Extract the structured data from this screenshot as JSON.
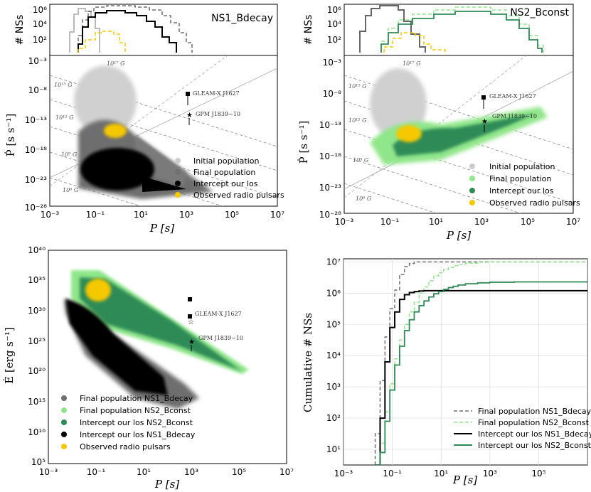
{
  "chart_data": [
    {
      "panel": "top-left",
      "type": "scatter",
      "histogram_title": "NS1_Bdecay",
      "histogram_ylabel": "# NSs",
      "histogram_yticks": [
        "10⁶",
        "10⁴",
        "10²"
      ],
      "xlabel": "P [s]",
      "ylabel": "Ṗ [s s⁻¹]",
      "xlim_log10": [
        -3,
        7
      ],
      "ylim_log10": [
        -28,
        -3
      ],
      "xticks": [
        "10⁻³",
        "10⁻¹",
        "10¹",
        "10³",
        "10⁵",
        "10⁷"
      ],
      "yticks": [
        "10⁻³",
        "10⁻⁸",
        "10⁻¹³",
        "10⁻¹⁸",
        "10⁻²³",
        "10⁻²⁸"
      ],
      "bfield_lines": [
        "10¹⁷ G",
        "10¹⁵ G",
        "10¹² G",
        "10⁹ G",
        "10⁶ G"
      ],
      "sources": [
        {
          "name": "GLEAM-X J1627",
          "logP": 3.03,
          "logPdot": -7.0
        },
        {
          "name": "GPM J1839−10",
          "logP": 3.12,
          "logPdot": -12.5
        }
      ],
      "legend": [
        "Initial population",
        "Final population",
        "Intercept our los",
        "Observed radio pulsars"
      ]
    },
    {
      "panel": "top-right",
      "type": "scatter",
      "histogram_title": "NS2_Bconst",
      "histogram_ylabel": "# NSs",
      "histogram_yticks": [
        "10⁶",
        "10⁴",
        "10²"
      ],
      "xlabel": "P [s]",
      "ylabel": "Ṗ [s s⁻¹]",
      "xlim_log10": [
        -3,
        7
      ],
      "ylim_log10": [
        -28,
        -3
      ],
      "xticks": [
        "10⁻³",
        "10⁻¹",
        "10¹",
        "10³",
        "10⁵",
        "10⁷"
      ],
      "yticks": [
        "10⁻³",
        "10⁻⁸",
        "10⁻¹³",
        "10⁻¹⁸",
        "10⁻²³",
        "10⁻²⁸"
      ],
      "bfield_lines": [
        "10¹⁷ G",
        "10¹⁵ G",
        "10¹² G",
        "10⁹ G",
        "10⁶ G"
      ],
      "sources": [
        {
          "name": "GLEAM-X J1627",
          "logP": 3.03,
          "logPdot": -7.0
        },
        {
          "name": "GPM J1839−10",
          "logP": 3.12,
          "logPdot": -12.5
        }
      ],
      "legend": [
        "Initial population",
        "Final population",
        "Intercept our los",
        "Observed radio pulsars"
      ]
    },
    {
      "panel": "bottom-left",
      "type": "scatter",
      "xlabel": "P [s]",
      "ylabel": "Ė [erg s⁻¹]",
      "xlim_log10": [
        -3,
        7
      ],
      "ylim_log10": [
        5,
        40
      ],
      "xticks": [
        "10⁻³",
        "10⁻¹",
        "10¹",
        "10³",
        "10⁵",
        "10⁷"
      ],
      "yticks": [
        "10⁴⁰",
        "10³⁵",
        "10³⁰",
        "10²⁵",
        "10²⁰",
        "10¹⁵",
        "10¹⁰",
        "10⁵"
      ],
      "sources": [
        {
          "name": "GLEAM-X J1627",
          "logP": 3.03,
          "logEdot": 28.5
        },
        {
          "name": "GPM J1839−10",
          "logP": 3.12,
          "logEdot": 25.0
        }
      ],
      "legend": [
        "Final population NS1_Bdecay",
        "Final population NS2_Bconst",
        "Intercept our los NS2_Bconst",
        "Intercept our los NS1_Bdecay",
        "Observed radio pulsars"
      ]
    },
    {
      "panel": "bottom-right",
      "type": "line",
      "xlabel": "P [s]",
      "ylabel": "Cumulative # NSs",
      "xlim_log10": [
        -3,
        7
      ],
      "ylim_log10": [
        0.5,
        7.1
      ],
      "xticks": [
        "10⁻³",
        "10⁻¹",
        "10¹",
        "10³",
        "10⁵"
      ],
      "yticks": [
        "10⁷",
        "10⁶",
        "10⁵",
        "10⁴",
        "10³",
        "10²",
        "10¹"
      ],
      "x_log10": [
        -1.7,
        -1.5,
        -1.3,
        -1.1,
        -0.9,
        -0.7,
        -0.5,
        -0.3,
        -0.1,
        0.1,
        0.3,
        0.5,
        0.7,
        0.9,
        1.1,
        1.3,
        1.5,
        1.7,
        2.0,
        2.5,
        3.0,
        4.0,
        5.0,
        7.0
      ],
      "series": [
        {
          "name": "Final population NS1_Bdecay",
          "values_log10": [
            1.5,
            3.2,
            4.6,
            5.5,
            6.1,
            6.6,
            6.85,
            6.95,
            7.0,
            7.0,
            7.0,
            7.0,
            7.0,
            7.0,
            7.0,
            7.0,
            7.0,
            7.0,
            7.0,
            7.0,
            7.0,
            7.0,
            7.0,
            7.0
          ]
        },
        {
          "name": "Final population NS2_Bconst",
          "values_log10": [
            0.5,
            1.2,
            2.2,
            3.1,
            3.9,
            4.5,
            5.0,
            5.4,
            5.7,
            6.0,
            6.2,
            6.4,
            6.55,
            6.65,
            6.75,
            6.82,
            6.88,
            6.92,
            6.96,
            6.99,
            7.0,
            7.0,
            7.0,
            7.0
          ]
        },
        {
          "name": "Intercept our los NS1_Bdecay",
          "values_log10": [
            0.5,
            2.0,
            3.8,
            4.9,
            5.4,
            5.8,
            5.95,
            6.02,
            6.05,
            6.07,
            6.08,
            6.08,
            6.08,
            6.08,
            6.08,
            6.08,
            6.08,
            6.08,
            6.08,
            6.08,
            6.08,
            6.08,
            6.08,
            6.08
          ]
        },
        {
          "name": "Intercept our los NS2_Bconst",
          "values_log10": [
            0.5,
            0.9,
            1.9,
            2.9,
            3.7,
            4.3,
            4.8,
            5.15,
            5.4,
            5.6,
            5.75,
            5.88,
            5.98,
            6.05,
            6.12,
            6.18,
            6.22,
            6.26,
            6.3,
            6.33,
            6.35,
            6.36,
            6.36,
            6.36
          ]
        }
      ],
      "legend": [
        "Final population NS1_Bdecay",
        "Final population NS2_Bconst",
        "Intercept our los NS1_Bdecay",
        "Intercept our los NS2_Bconst"
      ]
    }
  ],
  "colors": {
    "initial": "#cccccc",
    "final_ns1": "#707070",
    "final_ns2": "#90e68a",
    "intercept_ns1": "#000000",
    "intercept_ns2": "#2e8b57",
    "observed": "#f5c800"
  }
}
